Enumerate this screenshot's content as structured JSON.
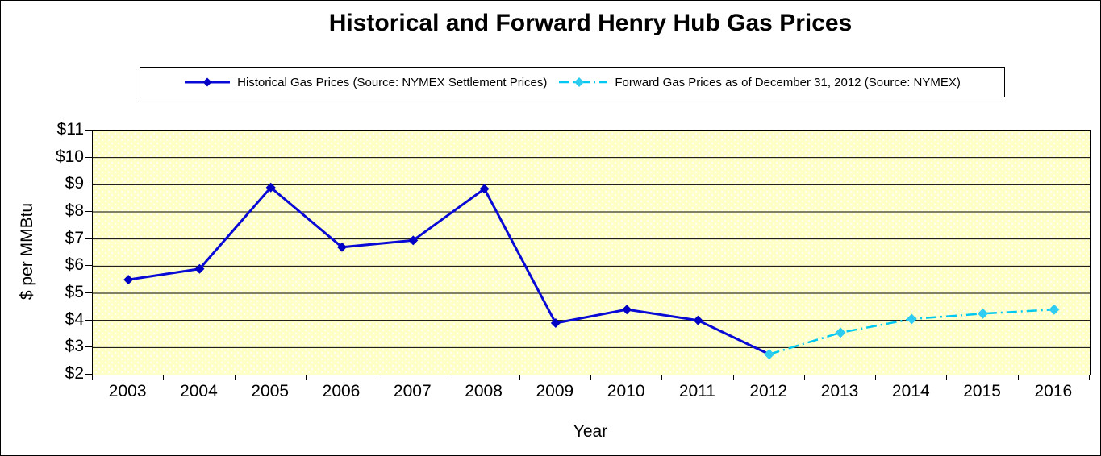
{
  "title": "Historical and Forward Henry Hub Gas Prices",
  "legend": {
    "historical_label": "Historical Gas Prices (Source: NYMEX Settlement Prices)",
    "forward_label": "Forward Gas Prices as of December 31, 2012 (Source: NYMEX)"
  },
  "colors": {
    "historical_line": "#0A0AD6",
    "historical_marker": "#0000C4",
    "forward_line": "#00C8F0",
    "forward_marker": "#2FCCF2",
    "plot_background": "#FFFFC8",
    "gridline": "#000000"
  },
  "chart_data": {
    "type": "line",
    "title": "Historical and Forward Henry Hub Gas Prices",
    "xlabel": "Year",
    "ylabel": "$ per MMBtu",
    "ylim": [
      2,
      11
    ],
    "ytick_step": 1,
    "ytick_labels": [
      "$2",
      "$3",
      "$4",
      "$5",
      "$6",
      "$7",
      "$8",
      "$9",
      "$10",
      "$11"
    ],
    "categories": [
      2003,
      2004,
      2005,
      2006,
      2007,
      2008,
      2009,
      2010,
      2011,
      2012,
      2013,
      2014,
      2015,
      2016
    ],
    "grid": "horizontal",
    "legend_position": "top",
    "series": [
      {
        "name": "Historical Gas Prices (Source: NYMEX Settlement Prices)",
        "line_style": "solid",
        "marker": "diamond",
        "x": [
          2003,
          2004,
          2005,
          2006,
          2007,
          2008,
          2009,
          2010,
          2011,
          2012
        ],
        "values": [
          5.5,
          5.9,
          8.9,
          6.7,
          6.95,
          8.85,
          3.9,
          4.4,
          4.0,
          2.75
        ]
      },
      {
        "name": "Forward Gas Prices as of December 31, 2012 (Source: NYMEX)",
        "line_style": "dash-dot",
        "marker": "diamond",
        "x": [
          2012,
          2013,
          2014,
          2015,
          2016
        ],
        "values": [
          2.75,
          3.55,
          4.05,
          4.25,
          4.4
        ]
      }
    ]
  }
}
